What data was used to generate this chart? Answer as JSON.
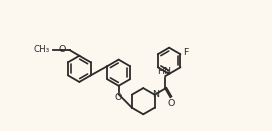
{
  "background_color": "#fdf8ef",
  "line_color": "#2a2a2a",
  "line_width": 1.3,
  "font_size": 6.8,
  "figsize": [
    2.72,
    1.31
  ],
  "dpi": 100,
  "xlim": [
    0,
    272
  ],
  "ylim": [
    0,
    131
  ]
}
